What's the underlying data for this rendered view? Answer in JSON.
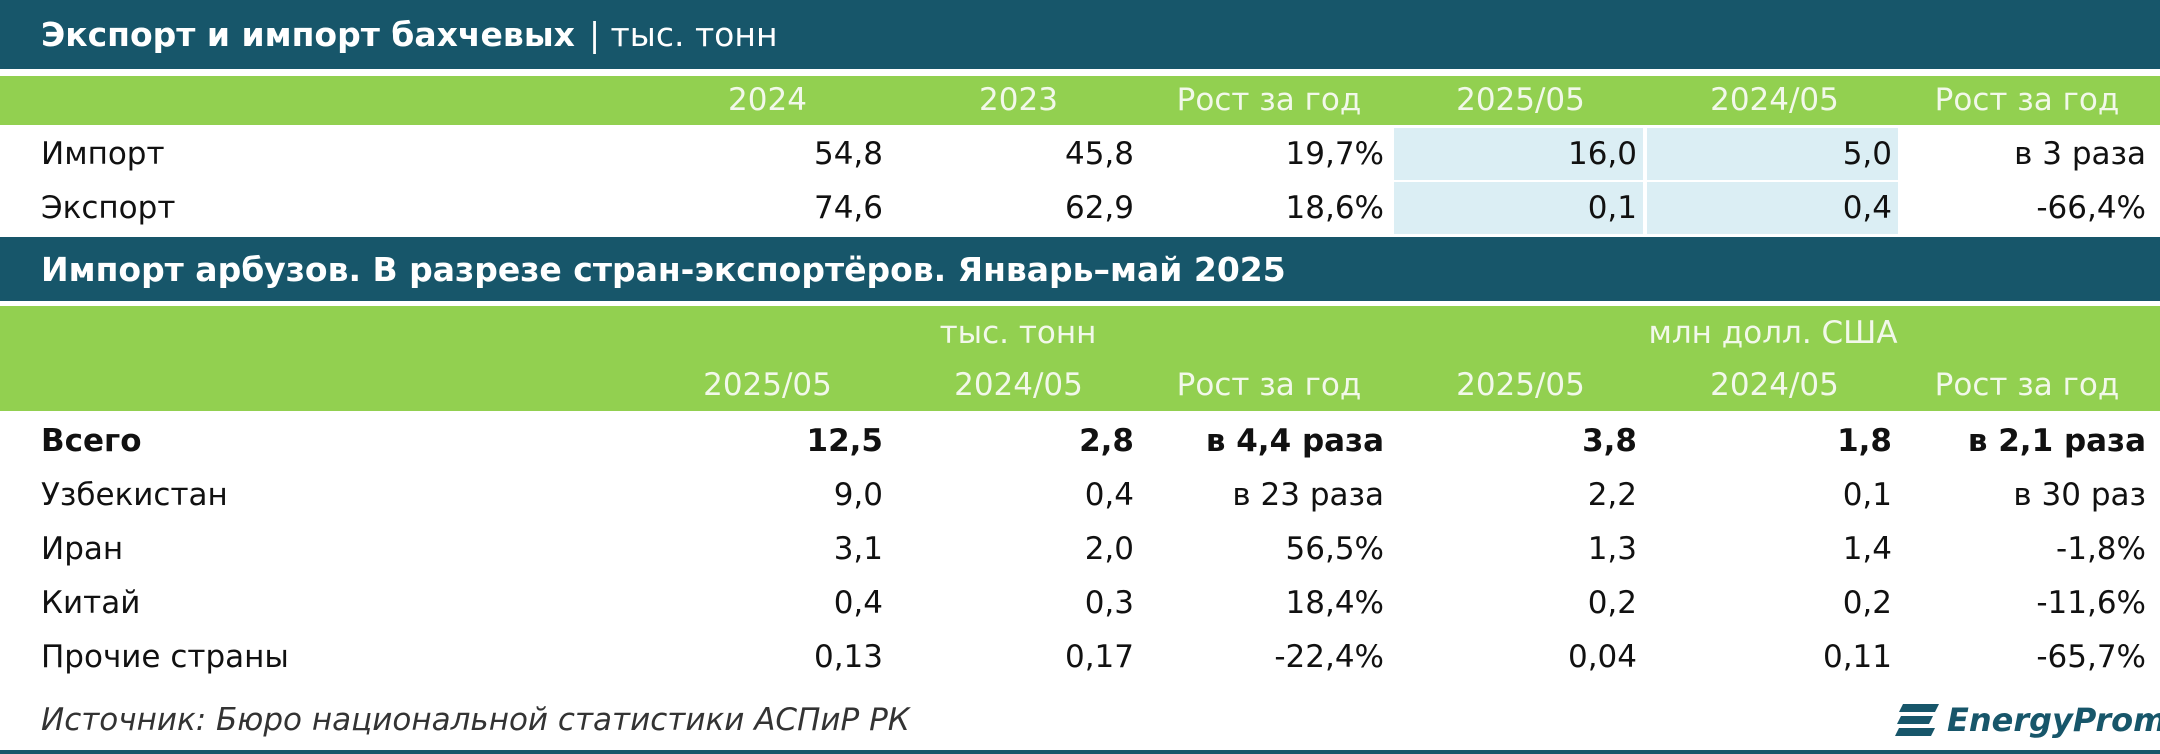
{
  "table1": {
    "title": "Экспорт и импорт бахчевых",
    "unit": "| тыс. тонн",
    "headers": [
      "2024",
      "2023",
      "Рост за год",
      "2025/05",
      "2024/05",
      "Рост за год"
    ],
    "rows": [
      {
        "label": "Импорт",
        "values": [
          "54,8",
          "45,8",
          "19,7%",
          "16,0",
          "5,0",
          "в 3 раза"
        ]
      },
      {
        "label": "Экспорт",
        "values": [
          "74,6",
          "62,9",
          "18,6%",
          "0,1",
          "0,4",
          "-66,4%"
        ]
      }
    ]
  },
  "table2": {
    "title": "Импорт арбузов. В разрезе стран-экспортёров. Январь–май 2025",
    "units": [
      "тыс. тонн",
      "млн долл. США"
    ],
    "headers": [
      "2025/05",
      "2024/05",
      "Рост за год",
      "2025/05",
      "2024/05",
      "Рост за год"
    ],
    "rows": [
      {
        "label": "Всего",
        "values": [
          "12,5",
          "2,8",
          "в 4,4 раза",
          "3,8",
          "1,8",
          "в 2,1 раза"
        ]
      },
      {
        "label": "Узбекистан",
        "values": [
          "9,0",
          "0,4",
          "в 23 раза",
          "2,2",
          "0,1",
          "в 30 раз"
        ]
      },
      {
        "label": "Иран",
        "values": [
          "3,1",
          "2,0",
          "56,5%",
          "1,3",
          "1,4",
          "-1,8%"
        ]
      },
      {
        "label": "Китай",
        "values": [
          "0,4",
          "0,3",
          "18,4%",
          "0,2",
          "0,2",
          "-11,6%"
        ]
      },
      {
        "label": "Прочие страны",
        "values": [
          "0,13",
          "0,17",
          "-22,4%",
          "0,04",
          "0,11",
          "-65,7%"
        ]
      }
    ]
  },
  "source": "Источник: Бюро национальной статистики АСПиР РК",
  "logo": "EnergyProm"
}
